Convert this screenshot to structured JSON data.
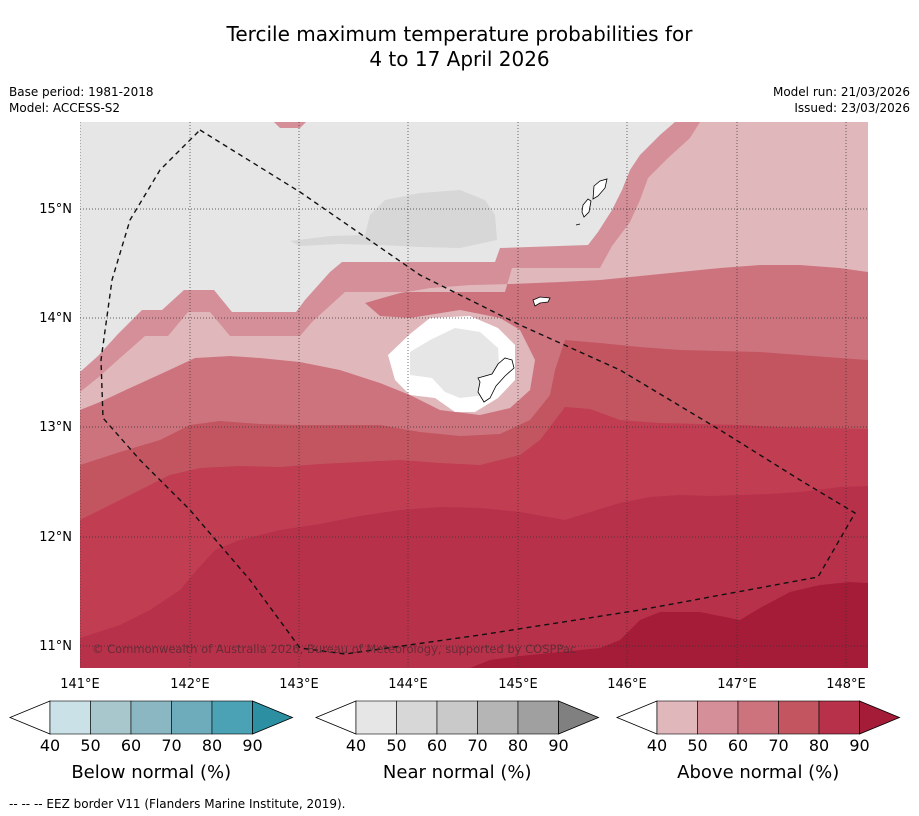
{
  "title": {
    "line1": "Tercile maximum temperature probabilities for",
    "line2": "4 to 17 April 2026"
  },
  "meta": {
    "base_period": "Base period: 1981-2018",
    "model": "Model: ACCESS-S2",
    "model_run": "Model run: 21/03/2026",
    "issued": "Issued: 23/03/2026"
  },
  "map": {
    "lon_ticks": [
      "141°E",
      "142°E",
      "143°E",
      "144°E",
      "145°E",
      "146°E",
      "147°E",
      "148°E"
    ],
    "lat_ticks": [
      "15°N",
      "14°N",
      "13°N",
      "12°N",
      "11°N"
    ],
    "copyright": "© Commonwealth of Australia 2026, Bureau of Meteorology, supported by COSPPac"
  },
  "legend": {
    "ticks": [
      "40",
      "50",
      "60",
      "70",
      "80",
      "90"
    ],
    "below": {
      "title": "Below normal (%)",
      "colors": [
        "#c9e1e7",
        "#a7c7cd",
        "#8bb7c2",
        "#6eacbc",
        "#4aa2b4",
        "#2c8fa2"
      ]
    },
    "near": {
      "title": "Near normal (%)",
      "colors": [
        "#e6e6e6",
        "#d7d7d7",
        "#c9c9c9",
        "#b5b5b5",
        "#a0a0a0",
        "#808080"
      ]
    },
    "above": {
      "title": "Above normal (%)",
      "colors": [
        "#e0b7bb",
        "#d48f98",
        "#cd737d",
        "#c35560",
        "#b8314a",
        "#a41c38"
      ]
    }
  },
  "footnote": "--  --  -- EEZ border V11 (Flanders Marine Institute, 2019)."
}
